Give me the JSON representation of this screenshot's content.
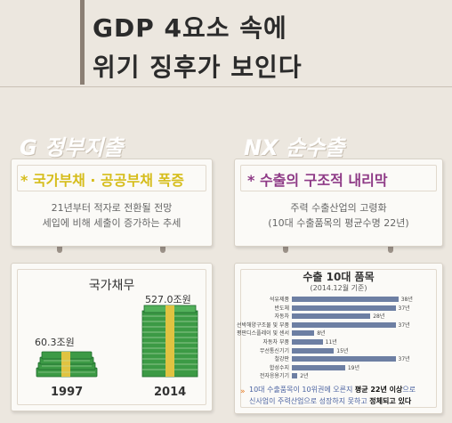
{
  "title": {
    "line1": "GDP 4요소 속에",
    "line2": "위기 징후가 보인다"
  },
  "left": {
    "header": "G 정부지출",
    "card": {
      "headline": "* 국가부채 · 공공부채 폭증",
      "desc1": "21년부터 적자로 전환될 전망",
      "desc2": "세입에 비해 세출이 증가하는 추세"
    },
    "debt": {
      "title": "국가채무",
      "value_1997": "60.3조원",
      "value_2014": "527.0조원",
      "year_1997": "1997",
      "year_2014": "2014"
    }
  },
  "right": {
    "header": "NX 순수출",
    "card": {
      "headline": "* 수출의 구조적 내리막",
      "desc1": "주력 수출산업의 고령화",
      "desc2": "(10대 수출품목의 평균수명 22년)"
    }
  },
  "chart_data": {
    "type": "bar",
    "orientation": "horizontal",
    "title": "수출 10대 품목",
    "subtitle": "(2014.12월 기준)",
    "categories": [
      "석유제품",
      "반도체",
      "자동차",
      "선박해양구조물 및 부품",
      "평판디스플레이 및 센서",
      "자동차 부품",
      "무선통신기기",
      "철강판",
      "합성수지",
      "전자응용기기"
    ],
    "values": [
      38,
      37,
      28,
      37,
      8,
      11,
      15,
      37,
      19,
      2
    ],
    "value_labels": [
      "38년",
      "37년",
      "28년",
      "37년",
      "8년",
      "11년",
      "15년",
      "37년",
      "19년",
      "2년"
    ],
    "xlim": [
      0,
      40
    ],
    "bar_color": "#6d7fa3"
  },
  "note": {
    "l1a": "10대 수출품목이 10위권에 오른지 ",
    "l1b": "평균 22년 이상",
    "l1c": "으로",
    "l2a": "신사업이 주력산업으로 성장하지 못하고 ",
    "l2b": "정체되고 있다"
  }
}
